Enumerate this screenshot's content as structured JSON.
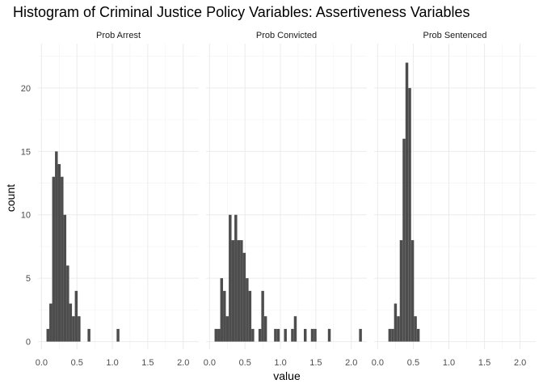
{
  "chart_data": {
    "type": "bar",
    "subtype": "histogram-faceted",
    "title": "Histogram of Criminal Justice Policy Variables: Assertiveness Variables",
    "xlabel": "value",
    "ylabel": "count",
    "xlim": [
      -0.05,
      2.22
    ],
    "ylim": [
      -0.6,
      23.5
    ],
    "x_ticks": [
      "0.0",
      "0.5",
      "1.0",
      "1.5",
      "2.0"
    ],
    "x_tick_values": [
      0.0,
      0.5,
      1.0,
      1.5,
      2.0
    ],
    "y_ticks": [
      "0",
      "5",
      "10",
      "15",
      "20"
    ],
    "y_tick_values": [
      0,
      5,
      10,
      15,
      20
    ],
    "grid": true,
    "bar_color": "#4d4d4d",
    "bin_width": 0.0395,
    "facets": [
      {
        "name": "Prob Arrest",
        "bins": [
          {
            "x": 0.09,
            "count": 1
          },
          {
            "x": 0.13,
            "count": 3
          },
          {
            "x": 0.17,
            "count": 13
          },
          {
            "x": 0.21,
            "count": 15
          },
          {
            "x": 0.25,
            "count": 14
          },
          {
            "x": 0.29,
            "count": 13
          },
          {
            "x": 0.33,
            "count": 10
          },
          {
            "x": 0.37,
            "count": 6
          },
          {
            "x": 0.41,
            "count": 3
          },
          {
            "x": 0.45,
            "count": 2
          },
          {
            "x": 0.49,
            "count": 4
          },
          {
            "x": 0.53,
            "count": 2
          },
          {
            "x": 0.67,
            "count": 1
          },
          {
            "x": 1.08,
            "count": 1
          }
        ]
      },
      {
        "name": "Prob Convicted",
        "bins": [
          {
            "x": 0.09,
            "count": 1
          },
          {
            "x": 0.13,
            "count": 1
          },
          {
            "x": 0.17,
            "count": 5
          },
          {
            "x": 0.21,
            "count": 4
          },
          {
            "x": 0.25,
            "count": 2
          },
          {
            "x": 0.29,
            "count": 10
          },
          {
            "x": 0.33,
            "count": 8
          },
          {
            "x": 0.37,
            "count": 10
          },
          {
            "x": 0.41,
            "count": 8
          },
          {
            "x": 0.45,
            "count": 8
          },
          {
            "x": 0.49,
            "count": 7
          },
          {
            "x": 0.53,
            "count": 5
          },
          {
            "x": 0.57,
            "count": 4
          },
          {
            "x": 0.61,
            "count": 1
          },
          {
            "x": 0.71,
            "count": 1
          },
          {
            "x": 0.75,
            "count": 4
          },
          {
            "x": 0.79,
            "count": 2
          },
          {
            "x": 0.93,
            "count": 1
          },
          {
            "x": 0.97,
            "count": 1
          },
          {
            "x": 1.07,
            "count": 1
          },
          {
            "x": 1.17,
            "count": 1
          },
          {
            "x": 1.21,
            "count": 2
          },
          {
            "x": 1.35,
            "count": 1
          },
          {
            "x": 1.45,
            "count": 1
          },
          {
            "x": 1.49,
            "count": 1
          },
          {
            "x": 1.69,
            "count": 1
          },
          {
            "x": 2.13,
            "count": 1
          }
        ]
      },
      {
        "name": "Prob Sentenced",
        "bins": [
          {
            "x": 0.17,
            "count": 1
          },
          {
            "x": 0.21,
            "count": 1
          },
          {
            "x": 0.25,
            "count": 3
          },
          {
            "x": 0.29,
            "count": 2
          },
          {
            "x": 0.33,
            "count": 8
          },
          {
            "x": 0.37,
            "count": 16
          },
          {
            "x": 0.41,
            "count": 22
          },
          {
            "x": 0.45,
            "count": 20
          },
          {
            "x": 0.49,
            "count": 8
          },
          {
            "x": 0.53,
            "count": 2
          },
          {
            "x": 0.57,
            "count": 1
          }
        ]
      }
    ]
  }
}
